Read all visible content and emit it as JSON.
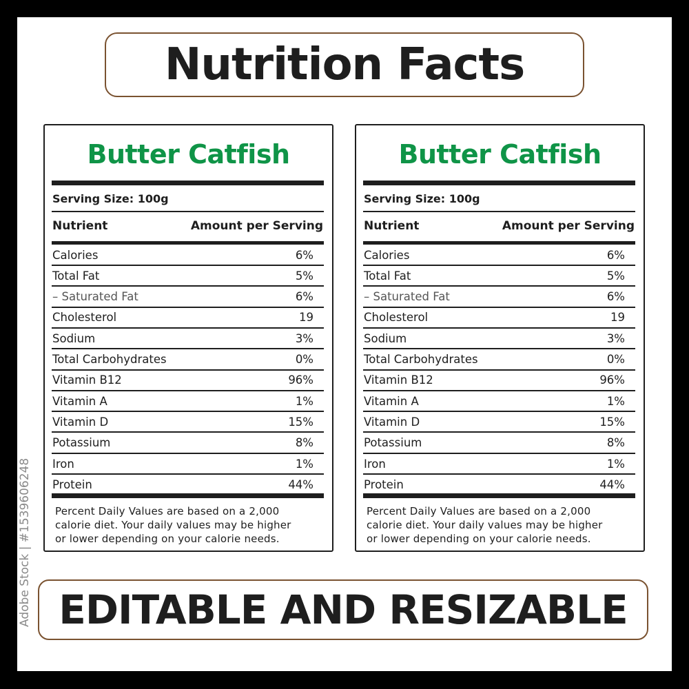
{
  "title": "Nutrition Facts",
  "footer_banner": "EDITABLE AND RESIZABLE",
  "watermark": "Adobe Stock | #1539606248",
  "colors": {
    "accent_green": "#0f9447",
    "frame_brown": "#7a5230",
    "text": "#1e1e1e"
  },
  "cards": [
    {
      "name": "Butter Catfish",
      "serving_size": "Serving Size: 100g",
      "col_nutrient": "Nutrient",
      "col_amount": "Amount per Serving",
      "rows": [
        {
          "label": "Calories",
          "value": "6%"
        },
        {
          "label": "Total Fat",
          "value": "5%"
        },
        {
          "label": "– Saturated Fat",
          "value": "6%",
          "sub": true
        },
        {
          "label": "Cholesterol",
          "value": "19"
        },
        {
          "label": "Sodium",
          "value": "3%"
        },
        {
          "label": "Total Carbohydrates",
          "value": "0%"
        },
        {
          "label": "Vitamin B12",
          "value": "96%"
        },
        {
          "label": "Vitamin A",
          "value": "1%"
        },
        {
          "label": "Vitamin D",
          "value": "15%"
        },
        {
          "label": "Potassium",
          "value": "8%"
        },
        {
          "label": "Iron",
          "value": "1%"
        },
        {
          "label": "Protein",
          "value": "44%"
        }
      ],
      "footnote": [
        "Percent Daily Values are based on a 2,000",
        "calorie diet. Your daily values may be higher",
        "or lower depending on your calorie needs."
      ]
    },
    {
      "name": "Butter Catfish",
      "serving_size": "Serving Size: 100g",
      "col_nutrient": "Nutrient",
      "col_amount": "Amount per Serving",
      "rows": [
        {
          "label": "Calories",
          "value": "6%"
        },
        {
          "label": "Total Fat",
          "value": "5%"
        },
        {
          "label": "– Saturated Fat",
          "value": "6%",
          "sub": true
        },
        {
          "label": "Cholesterol",
          "value": "19"
        },
        {
          "label": "Sodium",
          "value": "3%"
        },
        {
          "label": "Total Carbohydrates",
          "value": "0%"
        },
        {
          "label": "Vitamin B12",
          "value": "96%"
        },
        {
          "label": "Vitamin A",
          "value": "1%"
        },
        {
          "label": "Vitamin D",
          "value": "15%"
        },
        {
          "label": "Potassium",
          "value": "8%"
        },
        {
          "label": "Iron",
          "value": "1%"
        },
        {
          "label": "Protein",
          "value": "44%"
        }
      ],
      "footnote": [
        "Percent Daily Values are based on a 2,000",
        "calorie diet. Your daily values may be higher",
        "or lower depending on your calorie needs."
      ]
    }
  ]
}
